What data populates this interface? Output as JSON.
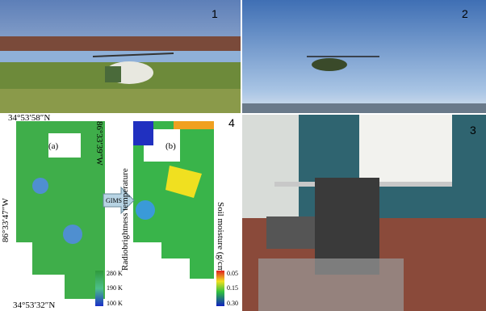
{
  "panels": [
    {
      "label": "1"
    },
    {
      "label": "2"
    },
    {
      "label": "3"
    },
    {
      "label": "4"
    }
  ],
  "figure": {
    "lat_top": "34°53′58″N",
    "lat_bottom": "34°53′32″N",
    "lon_left": "86°33′47″W",
    "lon_right": "86°33′39″W",
    "map_a": "(a)",
    "map_b": "(b)",
    "arrow": "GIMS",
    "left_axis": "Radiobrightness temperature",
    "right_axis": "Soil moisture (g/cm³)",
    "left_scale": [
      "280 K",
      "190 K",
      "100 K"
    ],
    "right_scale": [
      "0.05",
      "0.15",
      "0.30"
    ]
  }
}
